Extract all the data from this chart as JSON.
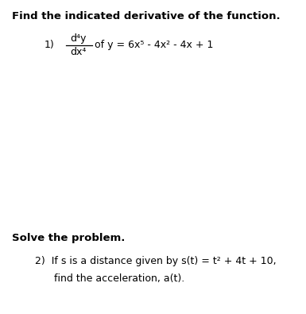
{
  "background_color": "#ffffff",
  "text_color": "#000000",
  "title_text": "Find the indicated derivative of the function.",
  "title_fontsize": 9.5,
  "title_bold": true,
  "body_fontsize": 9.0,
  "section2_text": "Solve the problem.",
  "problem2_line1": "2)  If s is a distance given by s(t) = t² + 4t + 10,",
  "problem2_line2": "      find the acceleration, a(t).",
  "frac_num_text": "d⁴y",
  "frac_den_text": "dx⁴",
  "num1_label": "1)"
}
